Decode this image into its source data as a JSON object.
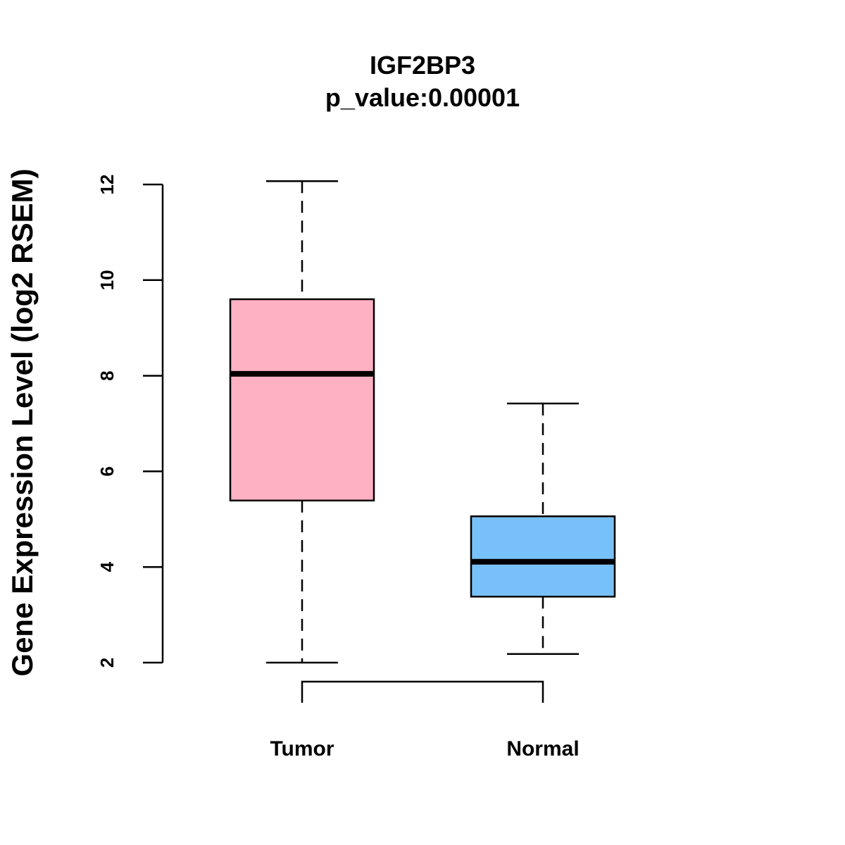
{
  "chart_data": {
    "type": "box",
    "title": "IGF2BP3",
    "subtitle": "p_value:0.00001",
    "xlabel": "",
    "ylabel": "Gene Expression Level (log2 RSEM)",
    "ylim": [
      2,
      12
    ],
    "yticks": [
      2,
      4,
      6,
      8,
      10,
      12
    ],
    "grid": false,
    "categories": [
      "Tumor",
      "Normal"
    ],
    "boxes": [
      {
        "name": "Tumor",
        "min": 2.0,
        "q1": 5.39,
        "median": 8.04,
        "q3": 9.6,
        "max": 12.07,
        "color": "#FDB1C3"
      },
      {
        "name": "Normal",
        "min": 2.18,
        "q1": 3.38,
        "median": 4.11,
        "q3": 5.06,
        "max": 7.42,
        "color": "#78C1F8"
      }
    ],
    "comparison_bracket": [
      "Tumor",
      "Normal"
    ]
  }
}
